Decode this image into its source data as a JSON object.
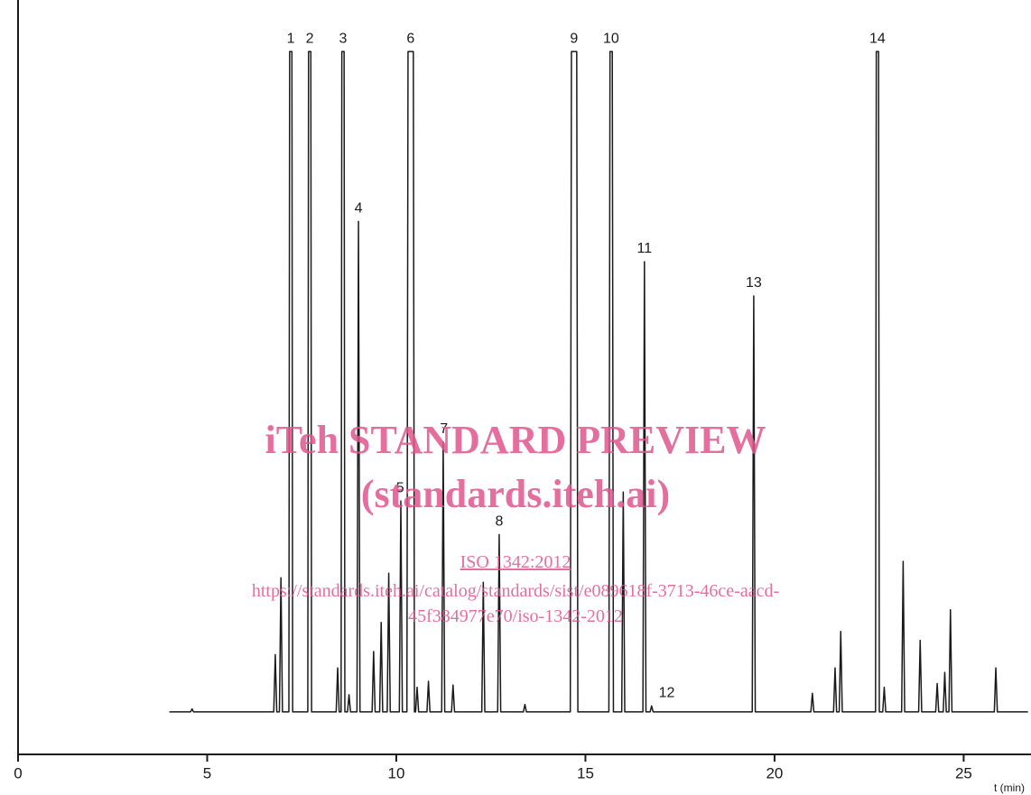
{
  "chart_data": {
    "type": "line",
    "x_label": "t (min)",
    "xlim": [
      0,
      26.78
    ],
    "xticks": [
      0,
      5,
      10,
      15,
      20,
      25
    ],
    "ylim": [
      0,
      100
    ],
    "series": [
      {
        "name": "chromatogram",
        "color": "#1a1a1a",
        "x": [
          4.0,
          4.56,
          4.6,
          4.64,
          6.76,
          6.8,
          6.84,
          6.91,
          6.95,
          6.99,
          7.16,
          7.18,
          7.24,
          7.26,
          7.66,
          7.68,
          7.74,
          7.76,
          8.41,
          8.45,
          8.49,
          8.54,
          8.56,
          8.62,
          8.64,
          8.71,
          8.75,
          8.79,
          8.96,
          9.0,
          9.04,
          9.36,
          9.4,
          9.44,
          9.56,
          9.6,
          9.64,
          9.76,
          9.8,
          9.84,
          10.08,
          10.12,
          10.16,
          10.28,
          10.31,
          10.45,
          10.48,
          10.51,
          10.55,
          10.59,
          10.81,
          10.85,
          10.89,
          11.2,
          11.24,
          11.28,
          11.46,
          11.5,
          11.54,
          12.26,
          12.3,
          12.34,
          12.68,
          12.72,
          12.76,
          13.36,
          13.4,
          13.44,
          14.6,
          14.63,
          14.77,
          14.8,
          15.62,
          15.65,
          15.71,
          15.74,
          15.96,
          16.0,
          16.04,
          16.52,
          16.56,
          16.6,
          16.71,
          16.75,
          16.79,
          19.41,
          19.45,
          19.49,
          20.96,
          21.0,
          21.04,
          21.56,
          21.6,
          21.64,
          21.71,
          21.75,
          21.79,
          22.67,
          22.69,
          22.75,
          22.77,
          22.86,
          22.9,
          22.94,
          23.36,
          23.4,
          23.44,
          23.81,
          23.85,
          23.89,
          24.26,
          24.3,
          24.34,
          24.46,
          24.5,
          24.54,
          24.61,
          24.65,
          24.69,
          25.81,
          25.85,
          25.89,
          26.7
        ],
        "values": [
          5.7,
          5.7,
          6.1,
          5.7,
          5.7,
          13.4,
          5.7,
          5.7,
          23.7,
          5.7,
          5.7,
          94.3,
          94.3,
          5.7,
          5.7,
          94.3,
          94.3,
          5.7,
          5.7,
          11.6,
          5.7,
          5.7,
          94.3,
          94.3,
          5.7,
          5.7,
          8.0,
          5.7,
          5.7,
          71.5,
          5.7,
          5.7,
          13.8,
          5.7,
          5.7,
          17.7,
          5.7,
          5.7,
          24.3,
          5.7,
          5.7,
          34.0,
          5.7,
          5.7,
          94.3,
          94.3,
          5.7,
          5.7,
          9.0,
          5.7,
          5.7,
          9.8,
          5.7,
          5.7,
          41.9,
          5.7,
          5.7,
          9.3,
          5.7,
          5.7,
          23.1,
          5.7,
          5.7,
          29.5,
          5.7,
          5.7,
          6.7,
          5.7,
          5.7,
          94.3,
          94.3,
          5.7,
          5.7,
          94.3,
          94.3,
          5.7,
          5.7,
          35.2,
          5.7,
          5.7,
          66.1,
          5.7,
          5.7,
          6.5,
          5.7,
          5.7,
          61.5,
          5.7,
          5.7,
          8.2,
          5.7,
          5.7,
          11.6,
          5.7,
          5.7,
          16.5,
          5.7,
          5.7,
          94.3,
          94.3,
          5.7,
          5.7,
          9.0,
          5.7,
          5.7,
          25.9,
          5.7,
          5.7,
          15.3,
          5.7,
          5.7,
          9.5,
          5.7,
          5.7,
          11.0,
          5.7,
          5.7,
          19.4,
          5.7,
          5.7,
          11.6,
          5.7,
          5.7
        ]
      }
    ],
    "annotations": [
      {
        "text": "1",
        "x": 7.21,
        "y": 94.3
      },
      {
        "text": "2",
        "x": 7.71,
        "y": 94.3
      },
      {
        "text": "3",
        "x": 8.59,
        "y": 94.3
      },
      {
        "text": "4",
        "x": 9.0,
        "y": 71.5
      },
      {
        "text": "5",
        "x": 10.1,
        "y": 34.0
      },
      {
        "text": "6",
        "x": 10.38,
        "y": 94.3
      },
      {
        "text": "7",
        "x": 11.26,
        "y": 41.9
      },
      {
        "text": "8",
        "x": 12.72,
        "y": 29.5
      },
      {
        "text": "9",
        "x": 14.7,
        "y": 94.3
      },
      {
        "text": "10",
        "x": 15.68,
        "y": 94.3
      },
      {
        "text": "11",
        "x": 16.56,
        "y": 66.1
      },
      {
        "text": "12",
        "x": 17.15,
        "y": 6.5
      },
      {
        "text": "13",
        "x": 19.45,
        "y": 61.5
      },
      {
        "text": "14",
        "x": 22.72,
        "y": 94.3
      }
    ]
  },
  "watermark": {
    "title": "iTeh STANDARD PREVIEW",
    "subtitle": "(standards.iteh.ai)",
    "standard": "ISO 1342:2012",
    "url_line1": "https://standards.iteh.ai/catalog/standards/sist/e089618f-3713-46ce-aacd-",
    "url_line2": "45f384977e70/iso-1342-2012"
  }
}
